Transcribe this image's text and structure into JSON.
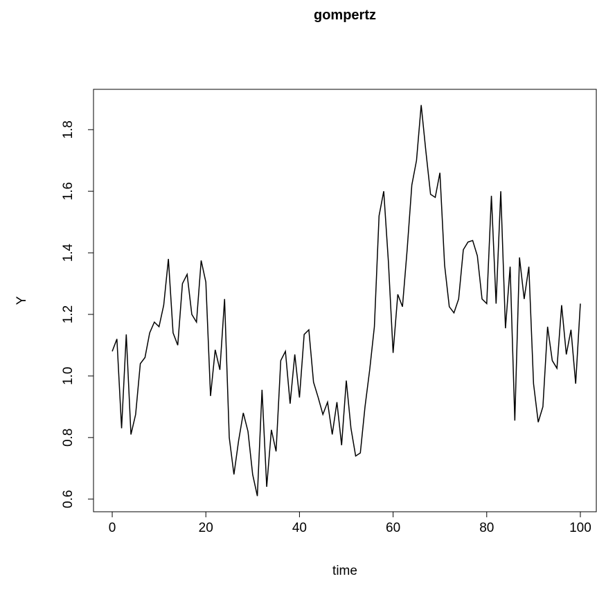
{
  "chart_data": {
    "type": "line",
    "title": "gompertz",
    "x_label": "time",
    "y_label": "Y",
    "x": [
      0,
      1,
      2,
      3,
      4,
      5,
      6,
      7,
      8,
      9,
      10,
      11,
      12,
      13,
      14,
      15,
      16,
      17,
      18,
      19,
      20,
      21,
      22,
      23,
      24,
      25,
      26,
      27,
      28,
      29,
      30,
      31,
      32,
      33,
      34,
      35,
      36,
      37,
      38,
      39,
      40,
      41,
      42,
      43,
      44,
      45,
      46,
      47,
      48,
      49,
      50,
      51,
      52,
      53,
      54,
      55,
      56,
      57,
      58,
      59,
      60,
      61,
      62,
      63,
      64,
      65,
      66,
      67,
      68,
      69,
      70,
      71,
      72,
      73,
      74,
      75,
      76,
      77,
      78,
      79,
      80,
      81,
      82,
      83,
      84,
      85,
      86,
      87,
      88,
      89,
      90,
      91,
      92,
      93,
      94,
      95,
      96,
      97,
      98,
      99,
      100
    ],
    "values": [
      1.08,
      1.12,
      0.83,
      1.135,
      0.81,
      0.875,
      1.04,
      1.06,
      1.14,
      1.175,
      1.16,
      1.23,
      1.38,
      1.14,
      1.1,
      1.3,
      1.33,
      1.2,
      1.175,
      1.375,
      1.305,
      0.935,
      1.085,
      1.02,
      1.25,
      0.8,
      0.68,
      0.79,
      0.88,
      0.82,
      0.68,
      0.61,
      0.955,
      0.64,
      0.825,
      0.755,
      1.05,
      1.08,
      0.91,
      1.07,
      0.93,
      1.135,
      1.15,
      0.98,
      0.93,
      0.875,
      0.915,
      0.81,
      0.915,
      0.775,
      0.985,
      0.83,
      0.74,
      0.75,
      0.9,
      1.02,
      1.16,
      1.52,
      1.6,
      1.37,
      1.075,
      1.265,
      1.225,
      1.41,
      1.62,
      1.7,
      1.88,
      1.73,
      1.59,
      1.58,
      1.66,
      1.36,
      1.225,
      1.205,
      1.25,
      1.41,
      1.435,
      1.44,
      1.39,
      1.25,
      1.235,
      1.585,
      1.235,
      1.6,
      1.155,
      1.355,
      0.855,
      1.385,
      1.25,
      1.355,
      0.975,
      0.85,
      0.9,
      1.16,
      1.05,
      1.025,
      1.23,
      1.07,
      1.15,
      0.975,
      1.235
    ],
    "color": "#000000",
    "xlim": [
      -4,
      104
    ],
    "ylim": [
      0.559,
      1.931
    ],
    "xticks": [
      0,
      20,
      40,
      60,
      80,
      100
    ],
    "yticks": [
      0.6,
      0.8,
      {
        "value": 1,
        "label": "1.0"
      },
      1.2,
      1.4,
      1.6,
      1.8
    ]
  }
}
